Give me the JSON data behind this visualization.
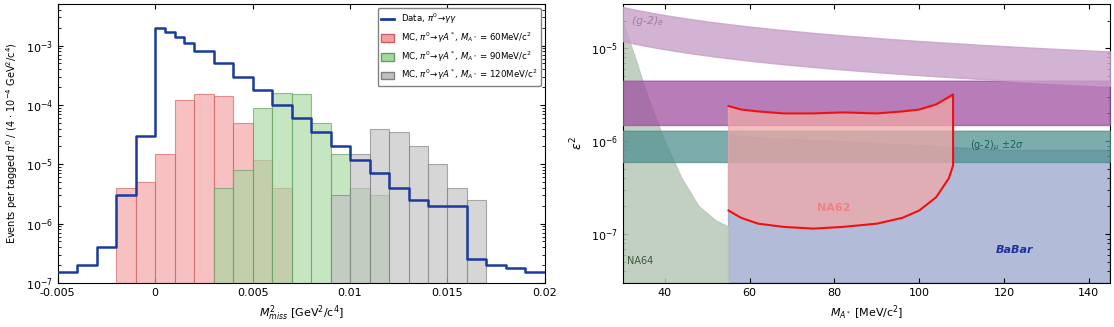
{
  "left": {
    "xlim": [
      -0.005,
      0.02
    ],
    "ylim": [
      1e-07,
      0.005
    ],
    "xlabel": "$M^2_{miss}$ [GeV$^2$/c$^4$]",
    "ylabel": "Events per tagged $\\pi^0$ / (4 $\\cdot$ 10$^{-4}$ GeV$^2$/c$^4$)",
    "data_color": "#1a3a9e",
    "mc60_color": "#f4a0a0",
    "mc90_color": "#a8d8a0",
    "mc120_color": "#c0c0c0",
    "mc60_edge": "#d06060",
    "mc90_edge": "#60a060",
    "mc120_edge": "#808080",
    "legend_labels": [
      "Data, $\\pi^0\\!\\rightarrow\\!\\gamma\\gamma$",
      "MC, $\\pi^0\\!\\rightarrow\\!\\gamma A^*$, $M_{A^*}$ = 60MeV/c$^2$",
      "MC, $\\pi^0\\!\\rightarrow\\!\\gamma A^*$, $M_{A^*}$ = 90MeV/c$^2$",
      "MC, $\\pi^0\\!\\rightarrow\\!\\gamma A^*$, $M_{A^*}$ = 120MeV/c$^2$"
    ],
    "data_bins": [
      -0.005,
      -0.004,
      -0.003,
      -0.002,
      -0.001,
      0.0,
      0.0005,
      0.001,
      0.0015,
      0.002,
      0.003,
      0.004,
      0.005,
      0.006,
      0.007,
      0.008,
      0.009,
      0.01,
      0.011,
      0.012,
      0.013,
      0.014,
      0.015,
      0.016,
      0.017,
      0.018,
      0.019,
      0.02
    ],
    "data_vals": [
      1.5e-07,
      2e-07,
      4e-07,
      3e-06,
      3e-05,
      0.002,
      0.0017,
      0.0014,
      0.0011,
      0.0008,
      0.0005,
      0.0003,
      0.00018,
      0.0001,
      6e-05,
      3.5e-05,
      2e-05,
      1.2e-05,
      7e-06,
      4e-06,
      2.5e-06,
      2e-06,
      2e-06,
      2.5e-07,
      2e-07,
      1.8e-07,
      1.5e-07,
      1.5e-07
    ],
    "mc60_bins": [
      -0.002,
      -0.001,
      0.0,
      0.001,
      0.002,
      0.003,
      0.004,
      0.005,
      0.006,
      0.007
    ],
    "mc60_vals": [
      4e-06,
      5e-06,
      1.5e-05,
      0.00012,
      0.00015,
      0.00014,
      5e-05,
      1.2e-05,
      4e-06,
      0
    ],
    "mc90_bins": [
      0.003,
      0.004,
      0.005,
      0.006,
      0.007,
      0.008,
      0.009,
      0.01,
      0.011,
      0.012
    ],
    "mc90_vals": [
      4e-06,
      8e-06,
      9e-05,
      0.00016,
      0.00015,
      5e-05,
      1.5e-05,
      4e-06,
      3e-06,
      0
    ],
    "mc120_bins": [
      0.009,
      0.01,
      0.011,
      0.012,
      0.013,
      0.014,
      0.015,
      0.016,
      0.017
    ],
    "mc120_vals": [
      3e-06,
      1.5e-05,
      4e-05,
      3.5e-05,
      2e-05,
      1e-05,
      4e-06,
      2.5e-06,
      0
    ]
  },
  "right": {
    "xlim": [
      30,
      145
    ],
    "ylim": [
      3e-08,
      3e-05
    ],
    "xlabel": "$M_{A^*}$ [MeV/c$^2$]",
    "ylabel": "$\\varepsilon^2$",
    "g2e_color": "#c8a0c8",
    "g2mu_color": "#a050a0",
    "g2mu_2sigma_color": "#509090",
    "babar_color": "#8090c0",
    "na64_color": "#b8c8b8",
    "na62_fill": "#f0a8a8",
    "na62_edge": "#ee1111",
    "labels": {
      "g2e": "(g-2)$_e$",
      "g2mu_2sigma": "(g-2)$_{\\mu}$ $\\pm2\\sigma$",
      "babar": "BaBar",
      "na64": "NA64",
      "na62": "NA62"
    }
  }
}
